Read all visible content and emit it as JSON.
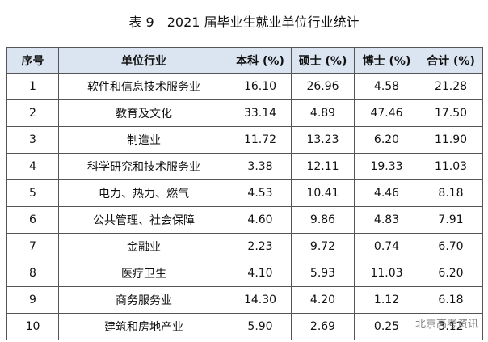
{
  "title": "表 9　2021 届毕业生就业单位行业统计",
  "table": {
    "header": [
      "序号",
      "单位行业",
      "本科 (%)",
      "硕士 (%)",
      "博士 (%)",
      "合计 (%)"
    ],
    "rows": [
      [
        "1",
        "软件和信息技术服务业",
        "16.10",
        "26.96",
        "4.58",
        "21.28"
      ],
      [
        "2",
        "教育及文化",
        "33.14",
        "4.89",
        "47.46",
        "17.50"
      ],
      [
        "3",
        "制造业",
        "11.72",
        "13.23",
        "6.20",
        "11.90"
      ],
      [
        "4",
        "科学研究和技术服务业",
        "3.38",
        "12.11",
        "19.33",
        "11.03"
      ],
      [
        "5",
        "电力、热力、燃气",
        "4.53",
        "10.41",
        "4.46",
        "8.18"
      ],
      [
        "6",
        "公共管理、社会保障",
        "4.60",
        "9.86",
        "4.83",
        "7.91"
      ],
      [
        "7",
        "金融业",
        "2.23",
        "9.72",
        "0.74",
        "6.70"
      ],
      [
        "8",
        "医疗卫生",
        "4.10",
        "5.93",
        "11.03",
        "6.20"
      ],
      [
        "9",
        "商务服务业",
        "14.30",
        "4.20",
        "1.12",
        "6.18"
      ],
      [
        "10",
        "建筑和房地产业",
        "5.90",
        "2.69",
        "0.25",
        "3.12"
      ]
    ]
  },
  "watermark": "北京高考资讯"
}
